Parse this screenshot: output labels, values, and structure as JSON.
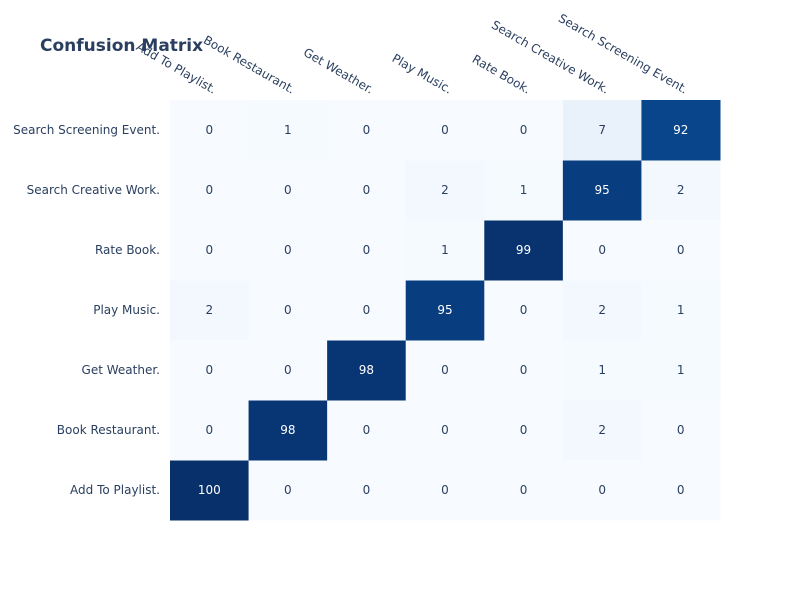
{
  "chart_data": {
    "type": "heatmap",
    "title": "Confusion Matrix",
    "x_categories": [
      "Add To Playlist.",
      "Book Restaurant.",
      "Get Weather.",
      "Play Music.",
      "Rate Book.",
      "Search Creative Work.",
      "Search Screening Event."
    ],
    "y_categories": [
      "Add To Playlist.",
      "Book Restaurant.",
      "Get Weather.",
      "Play Music.",
      "Rate Book.",
      "Search Creative Work.",
      "Search Screening Event."
    ],
    "z": [
      [
        100,
        0,
        0,
        0,
        0,
        0,
        0
      ],
      [
        0,
        98,
        0,
        0,
        0,
        2,
        0
      ],
      [
        0,
        0,
        98,
        0,
        0,
        1,
        1
      ],
      [
        2,
        0,
        0,
        95,
        0,
        2,
        1
      ],
      [
        0,
        0,
        0,
        1,
        99,
        0,
        0
      ],
      [
        0,
        0,
        0,
        2,
        1,
        95,
        2
      ],
      [
        0,
        1,
        0,
        0,
        0,
        7,
        92
      ]
    ],
    "colorscale": "Blues",
    "zmin": 0,
    "zmax": 100,
    "y_order": "first category at bottom",
    "x_labels_position": "top",
    "x_label_rotation": "tilted",
    "legend": "none",
    "grid": false
  }
}
